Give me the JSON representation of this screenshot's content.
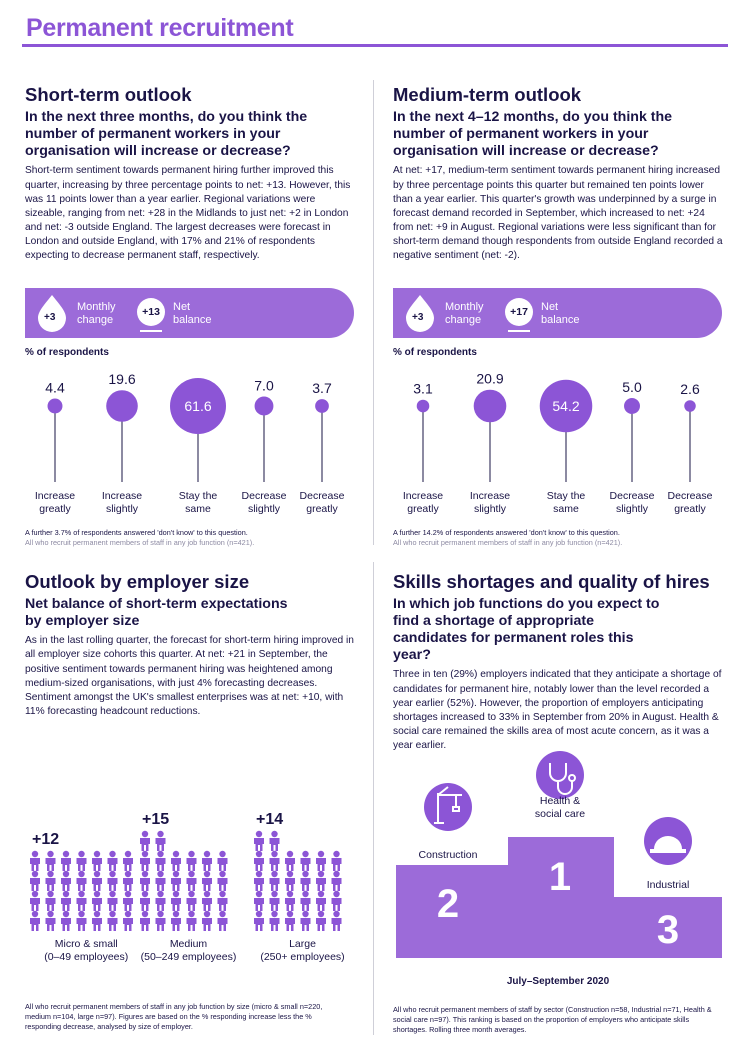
{
  "page_title": "Permanent recruitment",
  "short_term": {
    "title": "Short-term outlook",
    "question": "In the next three months, do you think the number of permanent workers in your organisation will increase or decrease?",
    "body": "Short-term sentiment towards permanent hiring further improved this quarter, increasing by three percentage points to net: +13. However, this was 11 points lower than a year earlier. Regional variations were sizeable, ranging from net: +28 in the Midlands to just net: +2 in London and net: -3 outside England. The largest decreases were forecast in London and outside England, with 17% and 21% of respondents expecting to decrease permanent staff, respectively.",
    "monthly_change": "+3",
    "monthly_change_label": "Monthly change",
    "net_balance": "+13",
    "net_balance_label": "Net balance",
    "pct_label": "% of respondents",
    "footnote_1": "A further 3.7% of respondents answered 'don't know' to this question.",
    "footnote_2": "All who recruit permanent members of staff in any job function (n=421)."
  },
  "medium_term": {
    "title": "Medium-term outlook",
    "question": "In the next 4–12 months, do you think the number of permanent workers in your organisation will increase or decrease?",
    "body": "At net: +17, medium-term sentiment towards permanent hiring increased by three percentage points this quarter but remained ten points lower than a year earlier. This quarter's growth was underpinned by a surge in forecast demand recorded in September, which increased to net: +24 from net: +9 in August. Regional variations were less significant than for short-term demand though respondents from outside England recorded a negative sentiment (net: -2).",
    "monthly_change": "+3",
    "monthly_change_label": "Monthly change",
    "net_balance": "+17",
    "net_balance_label": "Net balance",
    "pct_label": "% of respondents",
    "footnote_1": "A further 14.2% of respondents answered 'don't know' to this question.",
    "footnote_2": "All who recruit permanent members of staff in any job function (n=421)."
  },
  "employer_size": {
    "title": "Outlook by employer size",
    "subtitle": "Net balance of short-term expectations by employer size",
    "body": "As in the last rolling quarter, the forecast for short-term hiring improved in all employer size cohorts this quarter. At net: +21 in September, the positive sentiment towards permanent hiring was heightened among medium-sized organisations, with just 4% forecasting decreases. Sentiment amongst the UK's smallest enterprises was at net: +10, with 11% forecasting headcount reductions.",
    "footnote": "All who recruit permanent members of staff in any job function by size (micro & small n=220, medium n=104, large n=97). Figures are based on the % responding increase less the % responding decrease, analysed by size of employer."
  },
  "skills": {
    "title": "Skills shortages and quality of hires",
    "subtitle": "In which job functions do you expect to find a shortage of appropriate candidates for permanent roles this year?",
    "body": "Three in ten (29%) employers indicated that they anticipate a shortage of candidates for permanent hire, notably lower than the level recorded a year earlier (52%). However, the proportion of employers anticipating shortages increased to 33% in September from 20% in August. Health & social care remained the skills area of most acute concern, as it was a year earlier.",
    "period": "July–September 2020",
    "footnote": "All who recruit permanent members of staff by sector (Construction n=58, Industrial n=71, Health & social care n=97). This ranking is based on the proportion of employers who anticipate skills shortages. Rolling three month averages."
  },
  "chart_data": [
    {
      "type": "bubble",
      "title": "Short-term outlook",
      "ylabel": "% of respondents",
      "categories": [
        "Increase greatly",
        "Increase slightly",
        "Stay the same",
        "Decrease slightly",
        "Decrease greatly"
      ],
      "values": [
        4.4,
        19.6,
        61.6,
        7.0,
        3.7
      ]
    },
    {
      "type": "bubble",
      "title": "Medium-term outlook",
      "ylabel": "% of respondents",
      "categories": [
        "Increase greatly",
        "Increase slightly",
        "Stay the same",
        "Decrease slightly",
        "Decrease greatly"
      ],
      "values": [
        3.1,
        20.9,
        54.2,
        5.0,
        2.6
      ]
    },
    {
      "type": "bar",
      "title": "Net balance of short-term expectations by employer size",
      "categories": [
        "Micro & small (0–49 employees)",
        "Medium (50–249 employees)",
        "Large (250+ employees)"
      ],
      "category_lines": [
        [
          "Micro & small",
          "(0–49 employees)"
        ],
        [
          "Medium",
          "(50–249 employees)"
        ],
        [
          "Large",
          "(250+ employees)"
        ]
      ],
      "values": [
        12,
        15,
        14
      ],
      "value_labels": [
        "+12",
        "+15",
        "+14"
      ]
    },
    {
      "type": "ranking",
      "title": "Skills shortages",
      "categories": [
        "Construction",
        "Health & social care",
        "Industrial"
      ],
      "category_lines": [
        [
          "Construction"
        ],
        [
          "Health &",
          "social care"
        ],
        [
          "Industrial"
        ]
      ],
      "ranks": [
        2,
        1,
        3
      ]
    }
  ],
  "colors": {
    "accent": "#8c55d6",
    "light": "#9c6bd9",
    "dark": "#1a1446"
  }
}
